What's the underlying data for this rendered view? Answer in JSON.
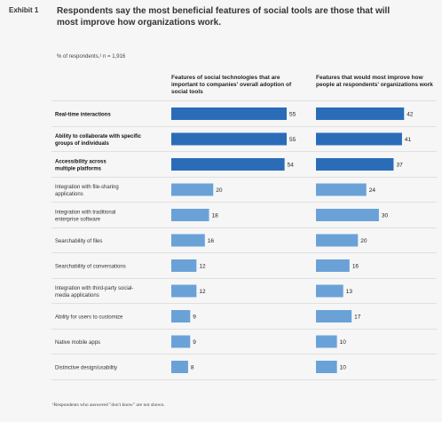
{
  "exhibit_label": "Exhibit 1",
  "title": "Respondents say the most beneficial features of social tools are those that will most improve how organizations work.",
  "subtitle": "% of respondents,¹ n = 1,916",
  "footnote": "¹Respondents who answered \"don't know\" are not shown.",
  "colors": {
    "highlight": "#2a6cb8",
    "regular": "#6aa2d8",
    "divider": "#c9c9c9"
  },
  "chart_data": {
    "type": "bar",
    "orientation": "horizontal",
    "categories": [
      "Real-time interactions",
      "Ability to collaborate with specific groups of individuals",
      "Accessibility across multiple platforms",
      "Integration with file-sharing applications",
      "Integration with traditional enterprise software",
      "Searchability of files",
      "Searchability of conversations",
      "Integration with third-party social-media applications",
      "Ability for users to customize",
      "Native mobile apps",
      "Distinctive design/usability"
    ],
    "category_lines": [
      [
        "Real-time interactions"
      ],
      [
        "Ability to collaborate with specific",
        "groups of individuals"
      ],
      [
        "Accessibility across",
        "multiple platforms"
      ],
      [
        "Integration with file-sharing",
        "applications"
      ],
      [
        "Integration with traditional",
        "enterprise software"
      ],
      [
        "Searchability of files"
      ],
      [
        "Searchability of conversations"
      ],
      [
        "Integration with third-party social-",
        "media applications"
      ],
      [
        "Ability for users to customize"
      ],
      [
        "Native mobile apps"
      ],
      [
        "Distinctive design/usability"
      ]
    ],
    "highlighted": [
      true,
      true,
      true,
      false,
      false,
      false,
      false,
      false,
      false,
      false,
      false
    ],
    "series": [
      {
        "name": "Features of social technologies that are important to companies' overall adoption of social tools",
        "values": [
          55,
          55,
          54,
          20,
          18,
          16,
          12,
          12,
          9,
          9,
          8
        ]
      },
      {
        "name": "Features that would most improve how people at respondents' organizations work",
        "values": [
          42,
          41,
          37,
          24,
          30,
          20,
          16,
          13,
          17,
          10,
          10
        ]
      }
    ],
    "xlim": [
      0,
      55
    ]
  }
}
